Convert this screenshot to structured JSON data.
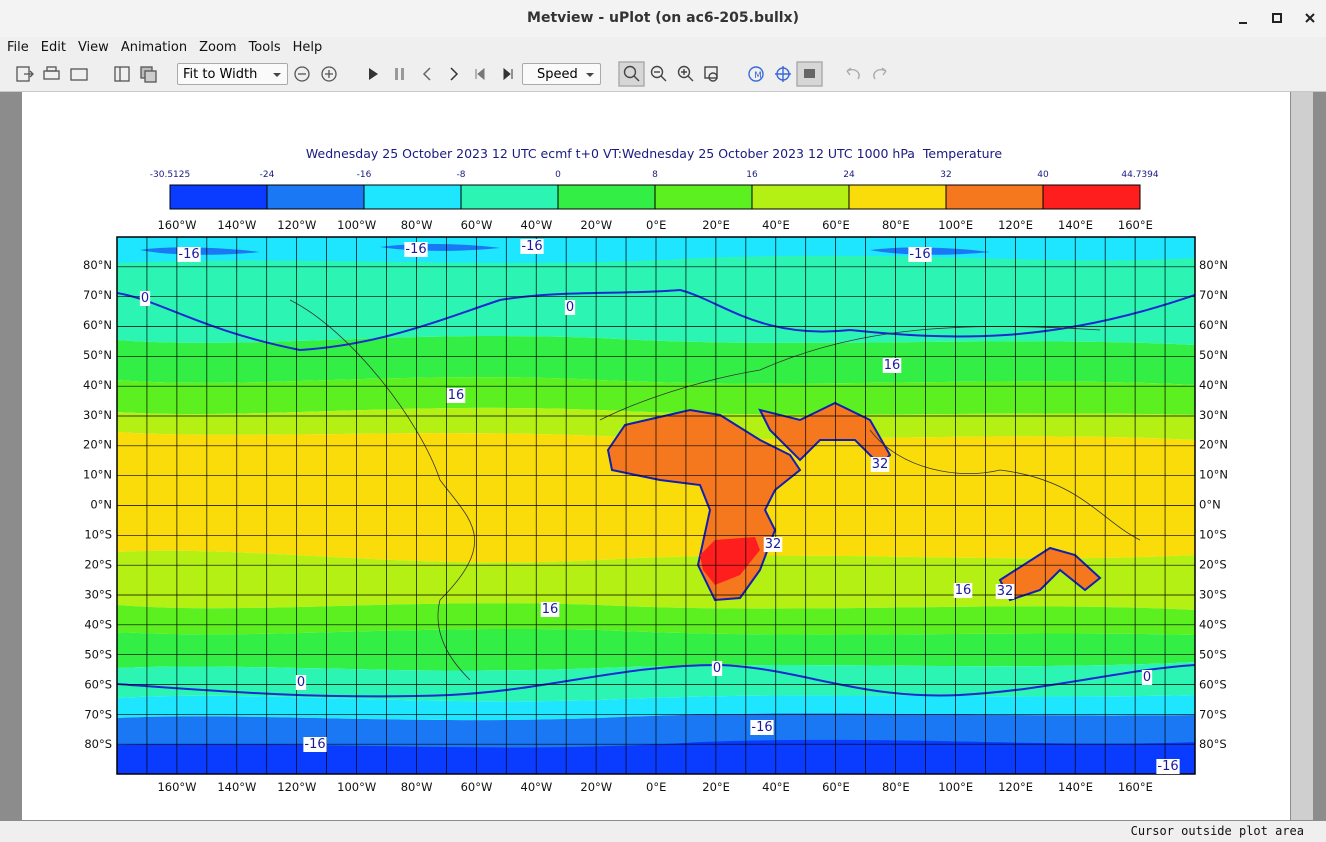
{
  "window": {
    "title": "Metview - uPlot (on ac6-205.bullx)"
  },
  "menu": [
    "File",
    "Edit",
    "View",
    "Animation",
    "Zoom",
    "Tools",
    "Help"
  ],
  "toolbar": {
    "zoom_mode": "Fit to Width",
    "speed": "Speed"
  },
  "plot": {
    "title": "Wednesday 25 October 2023 12 UTC ecmf t+0 VT:Wednesday 25 October 2023 12 UTC 1000 hPa  Temperature",
    "colorbar": {
      "ticks": [
        -30.5125,
        -24,
        -16,
        -8,
        0,
        8,
        16,
        24,
        32,
        40,
        44.7394
      ],
      "colors": [
        "#0a3cff",
        "#1a78f5",
        "#1ee6ff",
        "#2cf5b4",
        "#33ee44",
        "#5cf020",
        "#b4f014",
        "#fadc0a",
        "#f5781e",
        "#ff1e1e"
      ]
    },
    "lon_labels": [
      "160°W",
      "140°W",
      "120°W",
      "100°W",
      "80°W",
      "60°W",
      "40°W",
      "20°W",
      "0°E",
      "20°E",
      "40°E",
      "60°E",
      "80°E",
      "100°E",
      "120°E",
      "140°E",
      "160°E"
    ],
    "lat_labels": [
      "80°N",
      "70°N",
      "60°N",
      "50°N",
      "40°N",
      "30°N",
      "20°N",
      "10°N",
      "0°N",
      "10°S",
      "20°S",
      "30°S",
      "40°S",
      "50°S",
      "60°S",
      "70°S",
      "80°S"
    ],
    "contour_labels": [
      "-16",
      "-16",
      "-16",
      "-16",
      "-16",
      "-16",
      "-16",
      "0",
      "0",
      "0",
      "0",
      "0",
      "16",
      "16",
      "16",
      "16",
      "32",
      "32",
      "32"
    ]
  },
  "status": "Cursor outside plot area"
}
